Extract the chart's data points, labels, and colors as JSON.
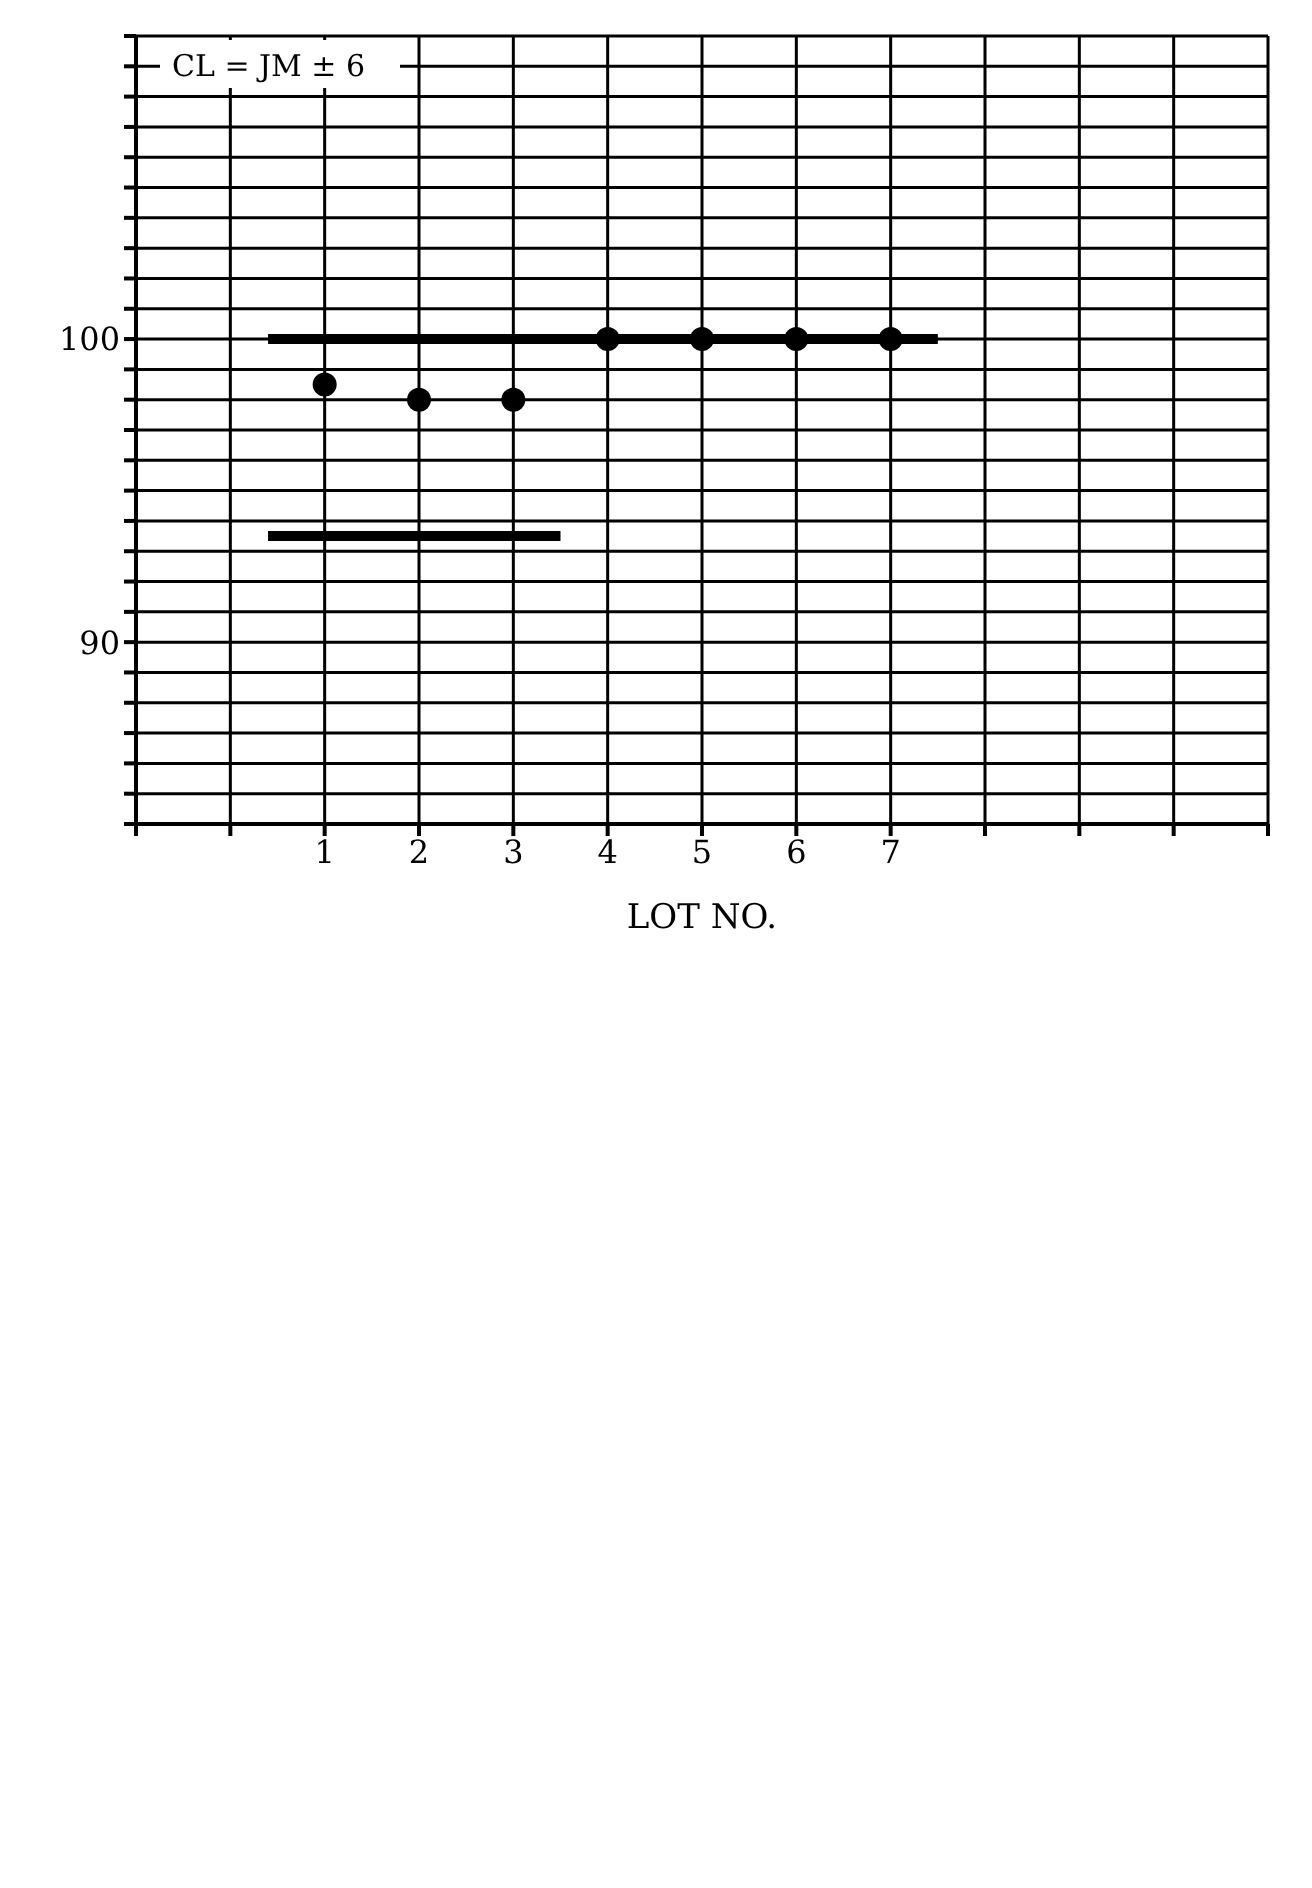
{
  "chart_data": {
    "type": "scatter",
    "xlabel": "LOT NO.",
    "x": [
      1,
      2,
      3,
      4,
      5,
      6,
      7
    ],
    "series": [
      {
        "color": "#000000",
        "values": [
          98.5,
          98,
          98,
          100,
          100,
          100,
          100
        ],
        "marker": "circle"
      },
      {
        "type": "line",
        "color": "#000000",
        "x": [
          0.4,
          7.5
        ],
        "values": [
          100,
          100
        ],
        "marker": "none"
      },
      {
        "type": "line",
        "color": "#000000",
        "x": [
          0.4,
          3.5
        ],
        "values": [
          93.5,
          93.5
        ],
        "marker": "none"
      }
    ],
    "xlim": [
      -1,
      11
    ],
    "xticks": [
      {
        "value": -1,
        "label": null
      },
      {
        "value": 0,
        "label": null
      },
      1,
      2,
      3,
      4,
      5,
      6,
      7,
      {
        "value": 8,
        "label": null
      },
      {
        "value": 9,
        "label": null
      },
      {
        "value": 10,
        "label": null
      },
      {
        "value": 11,
        "label": null
      }
    ],
    "ylim": [
      84,
      110
    ],
    "yticks": [
      {
        "value": 84,
        "label": null
      },
      {
        "value": 85,
        "label": null
      },
      {
        "value": 86,
        "label": null
      },
      {
        "value": 87,
        "label": null
      },
      {
        "value": 88,
        "label": null
      },
      {
        "value": 89,
        "label": null
      },
      90,
      {
        "value": 91,
        "label": null
      },
      {
        "value": 92,
        "label": null
      },
      {
        "value": 93,
        "label": null
      },
      {
        "value": 94,
        "label": null
      },
      {
        "value": 95,
        "label": null
      },
      {
        "value": 96,
        "label": null
      },
      {
        "value": 97,
        "label": null
      },
      {
        "value": 98,
        "label": null
      },
      {
        "value": 99,
        "label": null
      },
      100,
      {
        "value": 101,
        "label": null
      },
      {
        "value": 102,
        "label": null
      },
      {
        "value": 103,
        "label": null
      },
      {
        "value": 104,
        "label": null
      },
      {
        "value": 105,
        "label": null
      },
      {
        "value": 106,
        "label": null
      },
      {
        "value": 107,
        "label": null
      },
      {
        "value": 108,
        "label": null
      },
      {
        "value": 109,
        "label": null
      },
      {
        "value": 110,
        "label": null
      }
    ],
    "grid": true,
    "annotations": [
      "CL = JM ± 6"
    ]
  }
}
